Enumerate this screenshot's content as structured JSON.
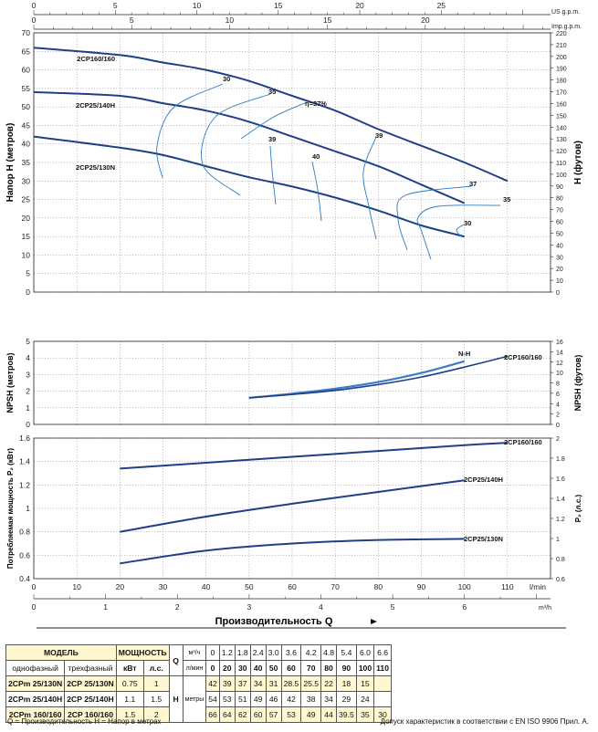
{
  "chart_data": [
    {
      "type": "line",
      "name_ref": "head",
      "ylabel": "Напор Н (метров)",
      "ylabel_right": "Н (футов)",
      "xlim": [
        0,
        120
      ],
      "ylim": [
        0,
        70
      ],
      "ylim_right": [
        0,
        220
      ],
      "yticks": [
        0,
        5,
        10,
        15,
        20,
        25,
        30,
        35,
        40,
        45,
        50,
        55,
        60,
        65,
        70
      ],
      "yticks_right": [
        0,
        10,
        20,
        30,
        40,
        50,
        60,
        70,
        80,
        90,
        100,
        110,
        120,
        130,
        140,
        150,
        160,
        170,
        180,
        190,
        200,
        210,
        220
      ],
      "series": [
        {
          "name": "2CP160/160",
          "x": [
            0,
            20,
            30,
            40,
            50,
            60,
            70,
            80,
            90,
            100,
            110
          ],
          "y": [
            66,
            64,
            62,
            60,
            57,
            53,
            49,
            44,
            39.5,
            35,
            30
          ]
        },
        {
          "name": "2CP25/140H",
          "x": [
            0,
            20,
            30,
            40,
            50,
            60,
            70,
            80,
            90,
            100
          ],
          "y": [
            54,
            53,
            51,
            49,
            46,
            42,
            38,
            34,
            29,
            24
          ]
        },
        {
          "name": "2CP25/130N",
          "x": [
            0,
            20,
            30,
            40,
            50,
            60,
            70,
            80,
            90,
            100
          ],
          "y": [
            42,
            39,
            37,
            34,
            31,
            28.5,
            25.5,
            22,
            18,
            15
          ]
        }
      ],
      "efficiency_labels": [
        "30",
        "35",
        "η=37%",
        "39",
        "40",
        "39",
        "37",
        "35",
        "30"
      ]
    },
    {
      "type": "line",
      "name_ref": "npsh",
      "ylabel": "NPSH (метров)",
      "ylabel_right": "NPSH (футов)",
      "ylim": [
        0,
        5
      ],
      "ylim_right": [
        0,
        16
      ],
      "yticks": [
        0,
        1,
        2,
        3,
        4,
        5
      ],
      "yticks_right": [
        0,
        2,
        4,
        6,
        8,
        10,
        12,
        14,
        16
      ],
      "series": [
        {
          "name": "N-H",
          "x": [
            50,
            60,
            70,
            80,
            90,
            100
          ],
          "y": [
            1.6,
            1.85,
            2.15,
            2.55,
            3.1,
            3.8
          ]
        },
        {
          "name": "2CP160/160",
          "x": [
            50,
            60,
            70,
            80,
            90,
            100,
            110
          ],
          "y": [
            1.6,
            1.8,
            2.05,
            2.4,
            2.85,
            3.45,
            4.1
          ]
        }
      ]
    },
    {
      "type": "line",
      "name_ref": "power",
      "ylabel": "Потребляемая мощность P₂ (кВт)",
      "ylabel_right": "P₂ (л.с.)",
      "ylim": [
        0.4,
        1.6
      ],
      "ylim_right": [
        0.6,
        2.0
      ],
      "yticks": [
        0.4,
        0.6,
        0.8,
        1.0,
        1.2,
        1.4,
        1.6
      ],
      "yticks_right": [
        0.6,
        0.8,
        1.0,
        1.2,
        1.4,
        1.6,
        1.8,
        2.0
      ],
      "series": [
        {
          "name": "2CP160/160",
          "x": [
            20,
            40,
            60,
            80,
            100,
            110
          ],
          "y": [
            1.34,
            1.39,
            1.44,
            1.49,
            1.54,
            1.56
          ]
        },
        {
          "name": "2CP25/140H",
          "x": [
            20,
            40,
            60,
            80,
            100
          ],
          "y": [
            0.8,
            0.93,
            1.04,
            1.14,
            1.24
          ]
        },
        {
          "name": "2CP25/130N",
          "x": [
            20,
            40,
            60,
            80,
            100
          ],
          "y": [
            0.53,
            0.64,
            0.7,
            0.73,
            0.74
          ]
        }
      ]
    }
  ],
  "axes": {
    "top_us_label": "US g.p.m.",
    "top_us_ticks": [
      "0",
      "5",
      "10",
      "15",
      "20",
      "25"
    ],
    "top_imp_label": "Imp.g.p.m.",
    "top_imp_ticks": [
      "0",
      "5",
      "10",
      "15",
      "20"
    ],
    "bottom_lmin_label": "l/min",
    "bottom_lmin_ticks": [
      "0",
      "10",
      "20",
      "30",
      "40",
      "50",
      "60",
      "70",
      "80",
      "90",
      "100",
      "110"
    ],
    "bottom_m3h_label": "m³/h",
    "bottom_m3h_ticks": [
      "0",
      "1",
      "2",
      "3",
      "4",
      "5",
      "6"
    ],
    "x_title": "Производительность Q"
  },
  "table": {
    "model_header": "МОДЕЛЬ",
    "power_header": "МОЩНОСТЬ",
    "single_phase": "однофазный",
    "three_phase": "трехфазный",
    "kw": "кВт",
    "hp": "л.с.",
    "q_letter": "Q",
    "m3h_unit": "м³/ч",
    "lmin_unit": "л/мин",
    "h_letter": "Н",
    "h_unit": "метры",
    "q_m3h": [
      "0",
      "1.2",
      "1.8",
      "2.4",
      "3.0",
      "3.6",
      "4.2",
      "4.8",
      "5.4",
      "6.0",
      "6.6"
    ],
    "q_lmin": [
      "0",
      "20",
      "30",
      "40",
      "50",
      "60",
      "70",
      "80",
      "90",
      "100",
      "110"
    ],
    "rows": [
      {
        "single": "2CPm 25/130N",
        "three": "2CP 25/130N",
        "kw": "0.75",
        "hp": "1",
        "h": [
          "42",
          "39",
          "37",
          "34",
          "31",
          "28.5",
          "25.5",
          "22",
          "18",
          "15",
          ""
        ]
      },
      {
        "single": "2CPm 25/140H",
        "three": "2CP 25/140H",
        "kw": "1.1",
        "hp": "1.5",
        "h": [
          "54",
          "53",
          "51",
          "49",
          "46",
          "42",
          "38",
          "34",
          "29",
          "24",
          ""
        ]
      },
      {
        "single": "2CPm 160/160",
        "three": "2CP 160/160",
        "kw": "1.5",
        "hp": "2",
        "h": [
          "66",
          "64",
          "62",
          "60",
          "57",
          "53",
          "49",
          "44",
          "39.5",
          "35",
          "30"
        ]
      }
    ]
  },
  "footer": {
    "left": "Q = Производительность   Н = Напор в метрах",
    "right": "Допуск характеристик в соответствии с EN ISO 9906 Прил.  А."
  },
  "colors": {
    "curve": "#1f3f86",
    "efficiency": "#2a7bc2",
    "table_fill": "#fff7d2"
  }
}
